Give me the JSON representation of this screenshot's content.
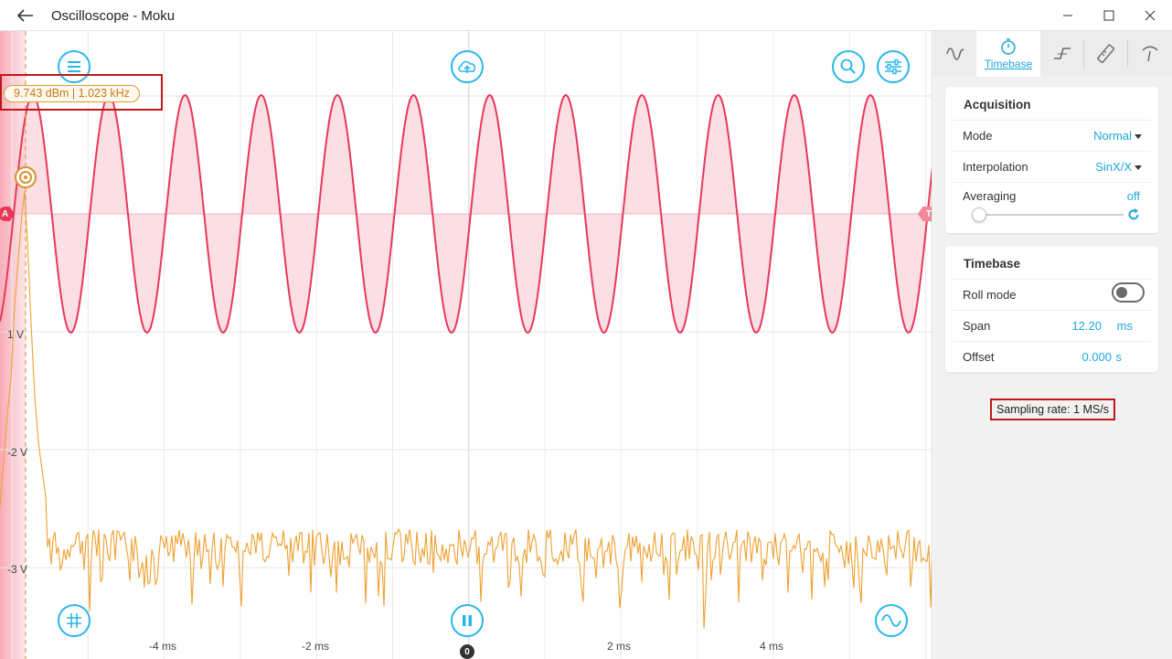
{
  "window": {
    "title": "Oscilloscope - Moku"
  },
  "plot": {
    "cursor_readout": "9.743 dBm | 1.023 kHz",
    "y_labels": [
      "1 V",
      "-2 V",
      "-3 V"
    ],
    "x_labels": [
      "-4 ms",
      "-2 ms",
      "2 ms",
      "4 ms"
    ],
    "marker_a": "A",
    "marker_t": "T",
    "marker_zero": "0",
    "colors": {
      "channel_a": "#e8385a",
      "fft": "#f0a030",
      "accent": "#29b6e8"
    },
    "buttons": {
      "menu": "menu-icon",
      "cloud": "cloud-upload-icon",
      "zoom": "magnifier-icon",
      "settings": "sliders-icon",
      "grid": "grid-icon",
      "pause": "pause-icon",
      "waveform": "sine-wave-icon"
    }
  },
  "side_panel": {
    "tabs": [
      {
        "icon": "sine-wave-icon",
        "label": ""
      },
      {
        "icon": "stopwatch-icon",
        "label": "Timebase"
      },
      {
        "icon": "trigger-edge-icon",
        "label": ""
      },
      {
        "icon": "ruler-icon",
        "label": ""
      },
      {
        "icon": "probe-icon",
        "label": ""
      }
    ],
    "acquisition": {
      "title": "Acquisition",
      "mode_label": "Mode",
      "mode_value": "Normal",
      "interpolation_label": "Interpolation",
      "interpolation_value": "SinX/X",
      "averaging_label": "Averaging",
      "averaging_value": "off",
      "averaging_level": 0
    },
    "timebase": {
      "title": "Timebase",
      "roll_mode_label": "Roll mode",
      "roll_mode_on": false,
      "span_label": "Span",
      "span_value": "12.20",
      "span_unit": "ms",
      "offset_label": "Offset",
      "offset_value": "0.000",
      "offset_unit": "s"
    },
    "sampling_rate": "Sampling rate: 1 MS/s"
  }
}
